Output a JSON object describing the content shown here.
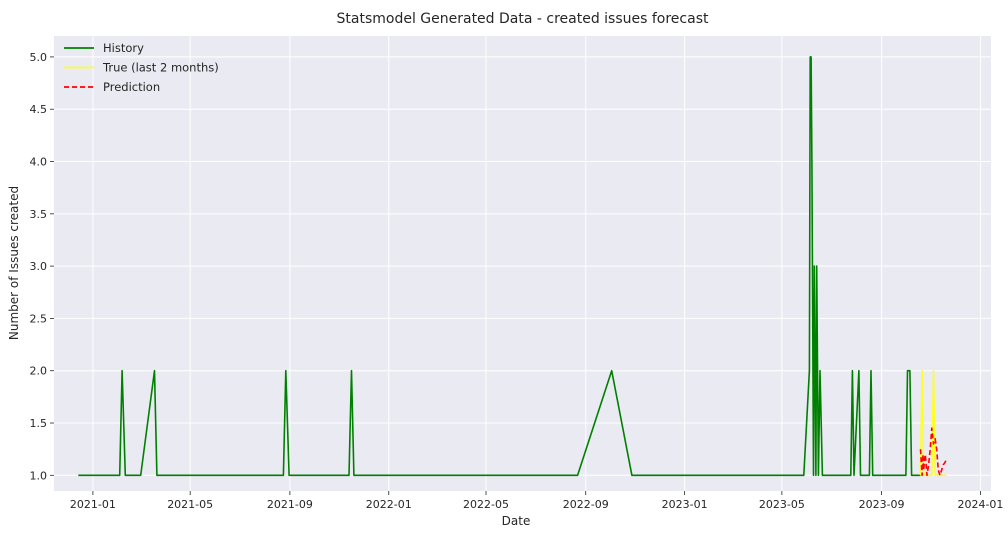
{
  "chart_data": {
    "type": "line",
    "title": "Statsmodel Generated Data - created issues forecast",
    "xlabel": "Date",
    "ylabel": "Number of Issues created",
    "xlim": [
      "2020-11-14",
      "2024-01-14"
    ],
    "ylim": [
      0.85,
      5.2
    ],
    "grid": true,
    "legend_position": "top-left",
    "x_ticks": [
      "2021-01",
      "2021-05",
      "2021-09",
      "2022-01",
      "2022-05",
      "2022-09",
      "2023-01",
      "2023-05",
      "2023-09",
      "2024-01"
    ],
    "y_ticks": [
      "1.0",
      "1.5",
      "2.0",
      "2.5",
      "3.0",
      "3.5",
      "4.0",
      "4.5",
      "5.0"
    ],
    "series": [
      {
        "name": "History",
        "color": "#008000",
        "style": "solid",
        "x": [
          "2020-12-14",
          "2021-02-03",
          "2021-02-06",
          "2021-02-10",
          "2021-03-01",
          "2021-03-18",
          "2021-03-21",
          "2021-08-24",
          "2021-08-27",
          "2021-08-31",
          "2021-11-13",
          "2021-11-16",
          "2021-11-19",
          "2022-08-22",
          "2022-10-03",
          "2022-10-28",
          "2023-05-28",
          "2023-06-04",
          "2023-06-05",
          "2023-06-06",
          "2023-06-07",
          "2023-06-09",
          "2023-06-10",
          "2023-06-12",
          "2023-06-13",
          "2023-06-15",
          "2023-06-17",
          "2023-06-20",
          "2023-06-22",
          "2023-07-25",
          "2023-07-27",
          "2023-07-29",
          "2023-08-04",
          "2023-08-06",
          "2023-08-17",
          "2023-08-19",
          "2023-08-21",
          "2023-10-01",
          "2023-10-03",
          "2023-10-06",
          "2023-10-08",
          "2023-10-19"
        ],
        "values": [
          1,
          1,
          2,
          1,
          1,
          2,
          1,
          1,
          2,
          1,
          1,
          2,
          1,
          1,
          2,
          1,
          1,
          2,
          5,
          5,
          4,
          1,
          3,
          1,
          3,
          1,
          2,
          1,
          1,
          1,
          2,
          1,
          2,
          1,
          1,
          2,
          1,
          1,
          2,
          2,
          1,
          1
        ]
      },
      {
        "name": "True (last 2 months)",
        "color": "#ffff22",
        "style": "solid",
        "x": [
          "2023-10-19",
          "2023-10-21",
          "2023-10-23",
          "2023-10-25",
          "2023-10-27",
          "2023-10-30",
          "2023-11-02",
          "2023-11-04",
          "2023-11-06",
          "2023-11-08",
          "2023-11-10",
          "2023-11-12",
          "2023-11-15",
          "2023-11-17",
          "2023-11-20"
        ],
        "values": [
          1,
          2,
          1,
          1,
          1,
          1,
          1,
          2,
          1,
          1,
          1,
          1,
          1,
          1,
          1
        ]
      },
      {
        "name": "Prediction",
        "color": "#ff0000",
        "style": "dashed",
        "x": [
          "2023-10-19",
          "2023-10-21",
          "2023-10-22",
          "2023-10-23",
          "2023-10-24",
          "2023-10-25",
          "2023-10-27",
          "2023-10-29",
          "2023-10-31",
          "2023-11-02",
          "2023-11-04",
          "2023-11-06",
          "2023-11-08",
          "2023-11-10",
          "2023-11-12",
          "2023-11-14",
          "2023-11-16",
          "2023-11-18",
          "2023-11-20"
        ],
        "values": [
          1.25,
          1.0,
          1.2,
          1.05,
          1.15,
          1.2,
          1.0,
          1.1,
          1.25,
          1.45,
          1.3,
          1.35,
          1.25,
          1.05,
          1.0,
          1.05,
          1.1,
          1.12,
          1.15
        ]
      }
    ]
  }
}
